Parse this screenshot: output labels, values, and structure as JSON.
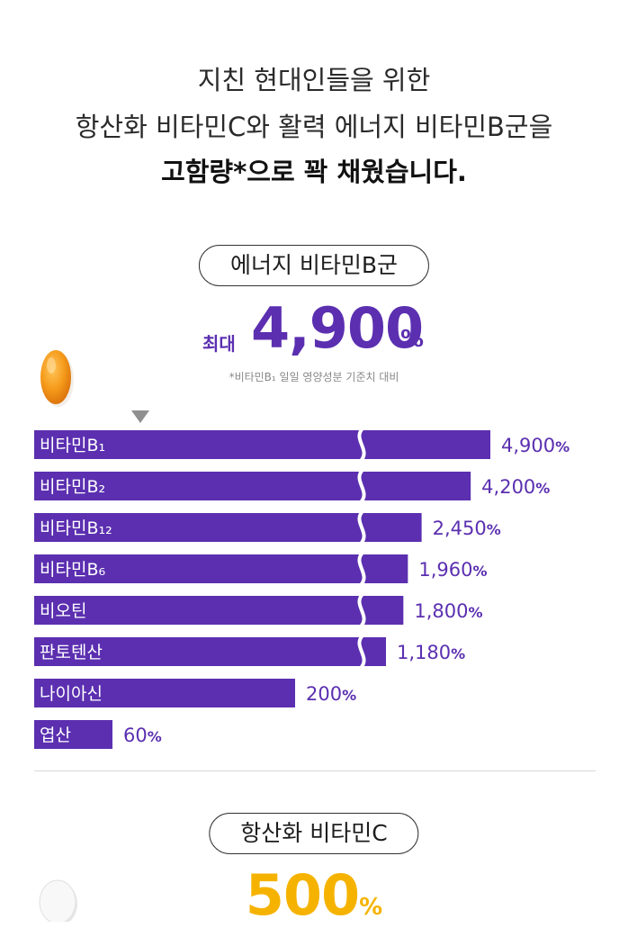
{
  "intro": {
    "line1": "지친 현대인들을 위한",
    "line2": "항산화 비타민C와 활력 에너지 비타민B군을",
    "line3": "고함량*으로 꽉 채웠습니다."
  },
  "section1": {
    "pill_label": "에너지 비타민B군",
    "headline_prefix": "최대",
    "headline_value": "4,900",
    "headline_unit": "%",
    "footnote": "*비타민B₁ 일일 영양성분 기준치 대비",
    "icon": "orange-capsule-icon"
  },
  "section2": {
    "pill_label": "항산화 비타민C",
    "headline_value": "500",
    "headline_unit": "%",
    "icon": "white-tablet-icon"
  },
  "colors": {
    "bar": "#5b2fb0",
    "value_text": "#5b2fb0",
    "accent_yellow": "#f5b300"
  },
  "chart_data": {
    "type": "bar",
    "orientation": "horizontal",
    "categories": [
      "비타민B₁",
      "비타민B₂",
      "비타민B₁₂",
      "비타민B₆",
      "비오틴",
      "판토텐산",
      "나이아신",
      "엽산"
    ],
    "values": [
      4900,
      4200,
      2450,
      1960,
      1800,
      1180,
      200,
      60
    ],
    "value_labels": [
      "4,900",
      "4,200",
      "2,450",
      "1,960",
      "1,800",
      "1,180",
      "200",
      "60"
    ],
    "unit": "%",
    "axis_break": true,
    "grid": false,
    "legend": "none"
  }
}
